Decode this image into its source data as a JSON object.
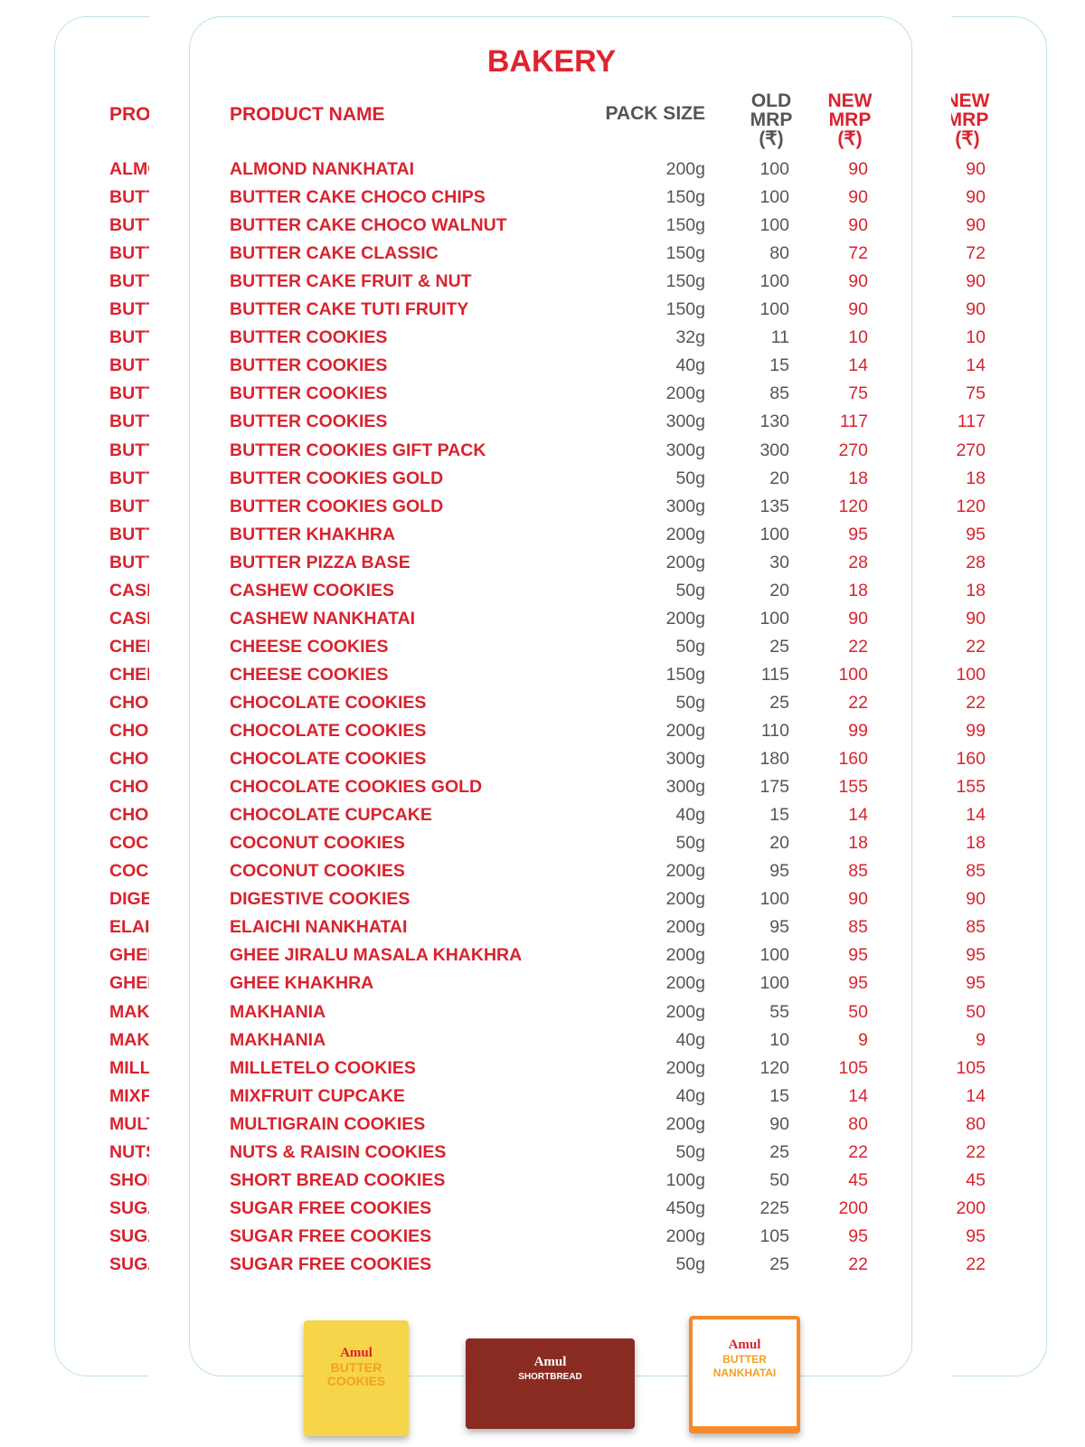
{
  "title": "BAKERY",
  "table": {
    "columns": [
      "PRODUCT NAME",
      "PACK SIZE",
      "OLD\nMRP\n(₹)",
      "NEW\nMRP\n(₹)"
    ],
    "rows": [
      [
        "ALMOND NANKHATAI",
        "200g",
        100,
        90
      ],
      [
        "BUTTER CAKE CHOCO CHIPS",
        "150g",
        100,
        90
      ],
      [
        "BUTTER CAKE CHOCO WALNUT",
        "150g",
        100,
        90
      ],
      [
        "BUTTER CAKE CLASSIC",
        "150g",
        80,
        72
      ],
      [
        "BUTTER CAKE FRUIT & NUT",
        "150g",
        100,
        90
      ],
      [
        "BUTTER CAKE TUTI FRUITY",
        "150g",
        100,
        90
      ],
      [
        "BUTTER COOKIES",
        "32g",
        11,
        10
      ],
      [
        "BUTTER COOKIES",
        "40g",
        15,
        14
      ],
      [
        "BUTTER COOKIES",
        "200g",
        85,
        75
      ],
      [
        "BUTTER COOKIES",
        "300g",
        130,
        117
      ],
      [
        "BUTTER COOKIES GIFT PACK",
        "300g",
        300,
        270
      ],
      [
        "BUTTER COOKIES GOLD",
        "50g",
        20,
        18
      ],
      [
        "BUTTER COOKIES GOLD",
        "300g",
        135,
        120
      ],
      [
        "BUTTER KHAKHRA",
        "200g",
        100,
        95
      ],
      [
        "BUTTER PIZZA BASE",
        "200g",
        30,
        28
      ],
      [
        "CASHEW COOKIES",
        "50g",
        20,
        18
      ],
      [
        "CASHEW NANKHATAI",
        "200g",
        100,
        90
      ],
      [
        "CHEESE COOKIES",
        "50g",
        25,
        22
      ],
      [
        "CHEESE COOKIES",
        "150g",
        115,
        100
      ],
      [
        "CHOCOLATE COOKIES",
        "50g",
        25,
        22
      ],
      [
        "CHOCOLATE COOKIES",
        "200g",
        110,
        99
      ],
      [
        "CHOCOLATE COOKIES",
        "300g",
        180,
        160
      ],
      [
        "CHOCOLATE COOKIES GOLD",
        "300g",
        175,
        155
      ],
      [
        "CHOCOLATE CUPCAKE",
        "40g",
        15,
        14
      ],
      [
        "COCONUT COOKIES",
        "50g",
        20,
        18
      ],
      [
        "COCONUT COOKIES",
        "200g",
        95,
        85
      ],
      [
        "DIGESTIVE COOKIES",
        "200g",
        100,
        90
      ],
      [
        "ELAICHI NANKHATAI",
        "200g",
        95,
        85
      ],
      [
        "GHEE JIRALU MASALA KHAKHRA",
        "200g",
        100,
        95
      ],
      [
        "GHEE KHAKHRA",
        "200g",
        100,
        95
      ],
      [
        "MAKHANIA",
        "200g",
        55,
        50
      ],
      [
        "MAKHANIA",
        "40g",
        10,
        9
      ],
      [
        "MILLETELO COOKIES",
        "200g",
        120,
        105
      ],
      [
        "MIXFRUIT CUPCAKE",
        "40g",
        15,
        14
      ],
      [
        "MULTIGRAIN COOKIES",
        "200g",
        90,
        80
      ],
      [
        "NUTS & RAISIN COOKIES",
        "50g",
        25,
        22
      ],
      [
        "SHORT BREAD COOKIES",
        "100g",
        50,
        45
      ],
      [
        "SUGAR FREE COOKIES",
        "450g",
        225,
        200
      ],
      [
        "SUGAR FREE COOKIES",
        "200g",
        105,
        95
      ],
      [
        "SUGAR FREE COOKIES",
        "50g",
        25,
        22
      ]
    ]
  },
  "products": [
    {
      "brand": "Amul",
      "label": "BUTTER COOKIES"
    },
    {
      "brand": "Amul",
      "label": "SHORTBREAD"
    },
    {
      "brand": "Amul",
      "label": "BUTTER NANKHATAI"
    }
  ]
}
